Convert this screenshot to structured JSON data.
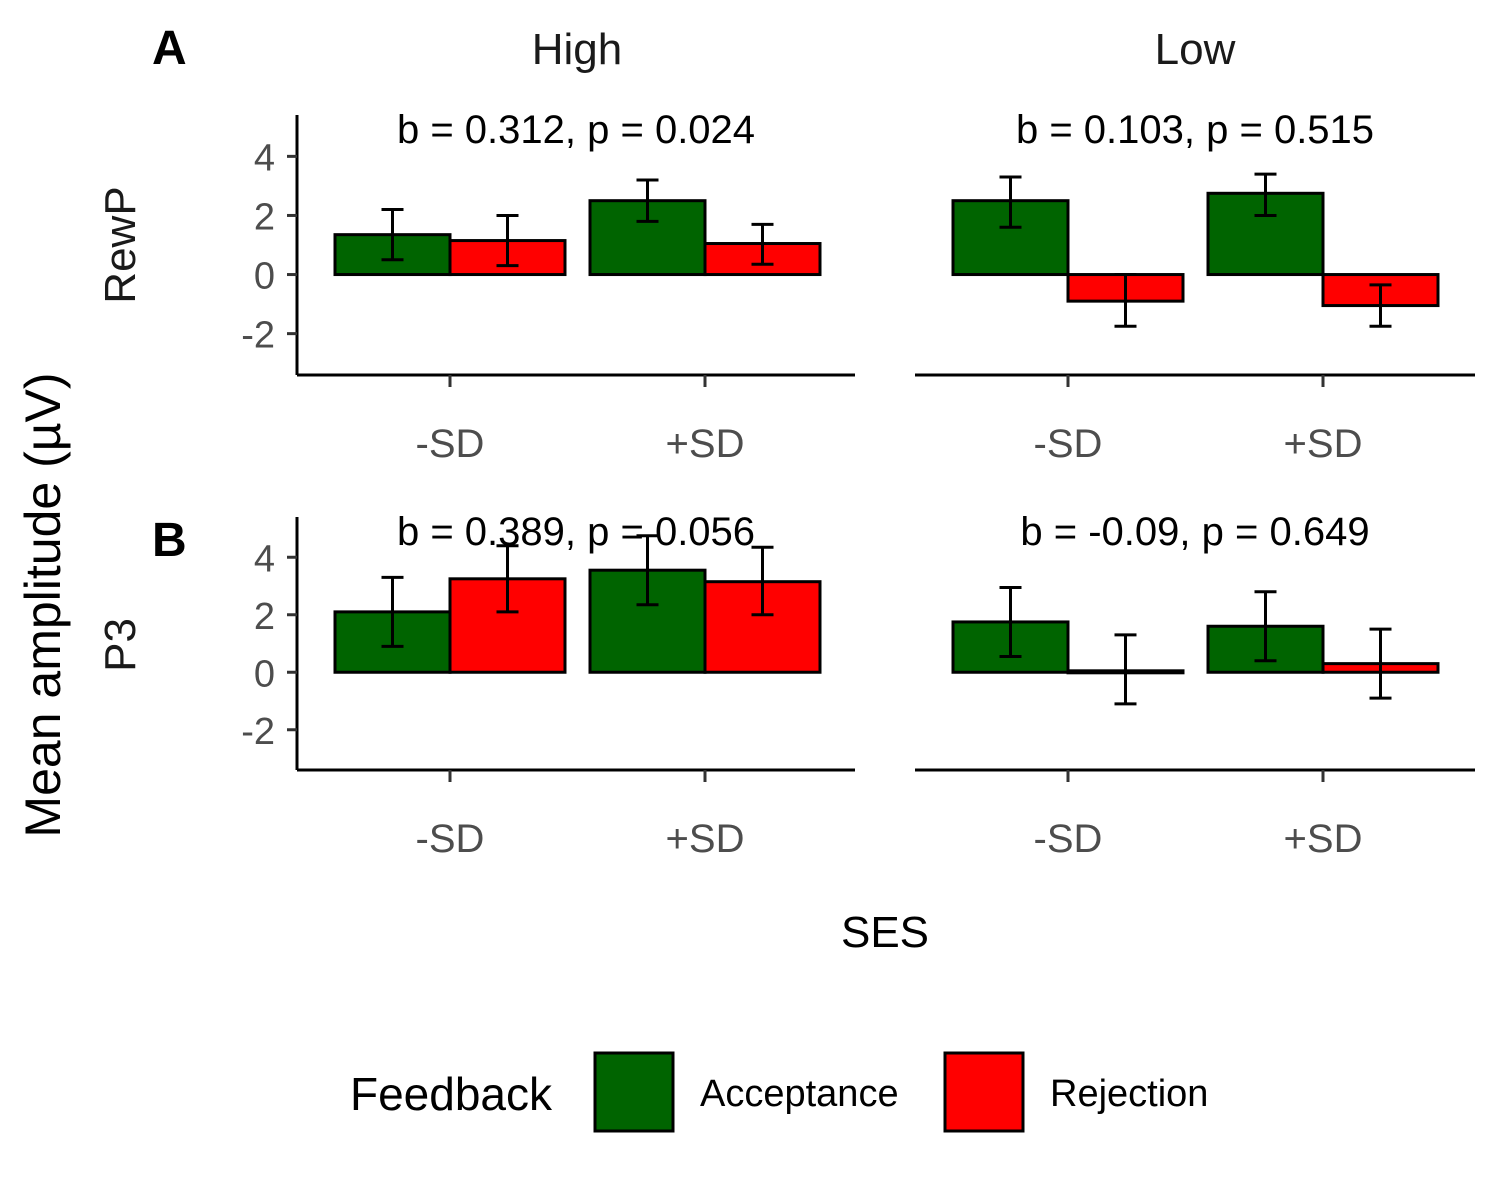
{
  "chart_data": {
    "type": "bar",
    "xlabel": "SES",
    "ylabel": "Mean amplitude (µV)",
    "ylim": [
      -3.4,
      5.4
    ],
    "yticks": [
      -2,
      0,
      2,
      4
    ],
    "categories": [
      "-SD",
      "+SD"
    ],
    "columns": [
      "High",
      "Low"
    ],
    "legend": {
      "title": "Feedback",
      "position": "bottom",
      "items": [
        {
          "name": "Acceptance",
          "color": "#006400"
        },
        {
          "name": "Rejection",
          "color": "#ff0000"
        }
      ]
    },
    "panels": [
      {
        "tag": "A",
        "row_label": "RewP",
        "facets": [
          {
            "column": "High",
            "stat": "b = 0.312, p = 0.024",
            "series": [
              {
                "name": "Acceptance",
                "values": [
                  1.35,
                  2.5
                ],
                "err_low": [
                  0.5,
                  1.8
                ],
                "err_high": [
                  2.2,
                  3.2
                ]
              },
              {
                "name": "Rejection",
                "values": [
                  1.15,
                  1.05
                ],
                "err_low": [
                  0.3,
                  0.35
                ],
                "err_high": [
                  2.0,
                  1.7
                ]
              }
            ]
          },
          {
            "column": "Low",
            "stat": "b = 0.103, p = 0.515",
            "series": [
              {
                "name": "Acceptance",
                "values": [
                  2.5,
                  2.75
                ],
                "err_low": [
                  1.6,
                  2.0
                ],
                "err_high": [
                  3.3,
                  3.4
                ]
              },
              {
                "name": "Rejection",
                "values": [
                  -0.9,
                  -1.05
                ],
                "err_low": [
                  -1.75,
                  -1.75
                ],
                "err_high": [
                  0.0,
                  -0.35
                ]
              }
            ]
          }
        ]
      },
      {
        "tag": "B",
        "row_label": "P3",
        "facets": [
          {
            "column": "High",
            "stat": "b = 0.389, p = 0.056",
            "series": [
              {
                "name": "Acceptance",
                "values": [
                  2.1,
                  3.55
                ],
                "err_low": [
                  0.9,
                  2.35
                ],
                "err_high": [
                  3.3,
                  4.75
                ]
              },
              {
                "name": "Rejection",
                "values": [
                  3.25,
                  3.15
                ],
                "err_low": [
                  2.1,
                  2.0
                ],
                "err_high": [
                  4.4,
                  4.35
                ]
              }
            ]
          },
          {
            "column": "Low",
            "stat": "b = -0.09, p = 0.649",
            "series": [
              {
                "name": "Acceptance",
                "values": [
                  1.75,
                  1.6
                ],
                "err_low": [
                  0.55,
                  0.4
                ],
                "err_high": [
                  2.95,
                  2.8
                ]
              },
              {
                "name": "Rejection",
                "values": [
                  0.05,
                  0.3
                ],
                "err_low": [
                  -1.1,
                  -0.9
                ],
                "err_high": [
                  1.3,
                  1.5
                ]
              }
            ]
          }
        ]
      }
    ]
  }
}
